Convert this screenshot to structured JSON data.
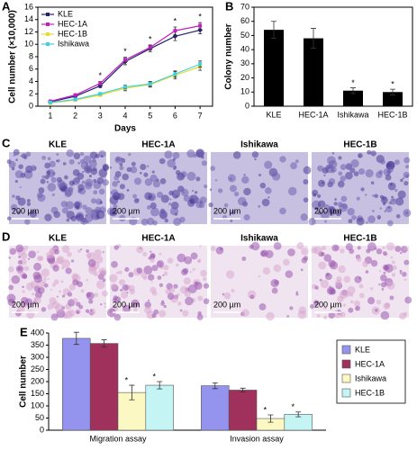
{
  "chart_data": [
    {
      "type": "line",
      "panel": "A",
      "xlabel": "Days",
      "ylabel": "Cell number (×10,000)",
      "x": [
        1,
        2,
        3,
        4,
        5,
        6,
        7
      ],
      "xlim": [
        0.5,
        7.5
      ],
      "xticks": [
        1,
        2,
        3,
        4,
        5,
        6,
        7
      ],
      "ylim": [
        0,
        16
      ],
      "yticks": [
        0,
        2,
        4,
        6,
        8,
        10,
        12,
        14,
        16
      ],
      "legend": "upper left",
      "significance_label": "*",
      "significant": [
        false,
        false,
        true,
        true,
        true,
        true,
        true
      ],
      "series": [
        {
          "name": "KLE",
          "color": "#22226e",
          "values": [
            0.7,
            1.6,
            3.3,
            7.2,
            9.3,
            11.3,
            12.3
          ],
          "errors": [
            0.1,
            0.2,
            0.3,
            0.5,
            0.5,
            0.7,
            0.6
          ]
        },
        {
          "name": "HEC-1A",
          "color": "#c020c0",
          "values": [
            0.8,
            1.8,
            3.7,
            7.5,
            9.5,
            12.2,
            13.0
          ],
          "errors": [
            0.1,
            0.2,
            0.3,
            0.4,
            0.4,
            0.6,
            0.5
          ]
        },
        {
          "name": "HEC-1B",
          "color": "#e6dc30",
          "values": [
            0.5,
            1.0,
            1.8,
            2.9,
            3.5,
            5.0,
            6.4
          ],
          "errors": [
            0.1,
            0.1,
            0.2,
            0.4,
            0.4,
            0.6,
            0.6
          ]
        },
        {
          "name": "Ishikawa",
          "color": "#40d0e0",
          "values": [
            0.6,
            1.1,
            2.0,
            3.1,
            3.6,
            5.2,
            6.8
          ],
          "errors": [
            0.1,
            0.1,
            0.2,
            0.3,
            0.4,
            0.5,
            0.5
          ]
        }
      ]
    },
    {
      "type": "bar",
      "panel": "B",
      "ylabel": "Colony number",
      "categories": [
        "KLE",
        "HEC-1A",
        "Ishikawa",
        "HEC-1B"
      ],
      "values": [
        54,
        48,
        11,
        10
      ],
      "errors": [
        6,
        7,
        2,
        2
      ],
      "color": "#000000",
      "ylim": [
        0,
        70
      ],
      "yticks": [
        0,
        10,
        20,
        30,
        40,
        50,
        60,
        70
      ],
      "significance_label": "*",
      "significant": [
        false,
        false,
        true,
        true
      ]
    },
    {
      "type": "bar",
      "panel": "E",
      "ylabel": "Cell number",
      "categories": [
        "Migration assay",
        "Invasion assay"
      ],
      "ylim": [
        0,
        400
      ],
      "yticks": [
        0,
        50,
        100,
        150,
        200,
        250,
        300,
        350,
        400
      ],
      "legend": "right",
      "significance_label": "*",
      "series": [
        {
          "name": "KLE",
          "color": "#9494ee",
          "values": [
            378,
            183
          ],
          "errors": [
            25,
            12
          ],
          "significant": [
            false,
            false
          ]
        },
        {
          "name": "HEC-1A",
          "color": "#a0305c",
          "values": [
            357,
            165
          ],
          "errors": [
            15,
            8
          ],
          "significant": [
            false,
            false
          ]
        },
        {
          "name": "Ishikawa",
          "color": "#fcf8c4",
          "values": [
            155,
            48
          ],
          "errors": [
            30,
            15
          ],
          "significant": [
            true,
            true
          ]
        },
        {
          "name": "HEC-1B",
          "color": "#c4f4f4",
          "values": [
            185,
            65
          ],
          "errors": [
            15,
            10
          ],
          "significant": [
            true,
            true
          ]
        }
      ]
    }
  ],
  "image_panels": [
    {
      "letter": "C",
      "labels": [
        "KLE",
        "HEC-1A",
        "Ishikawa",
        "HEC-1B"
      ],
      "scale": "200 µm"
    },
    {
      "letter": "D",
      "labels": [
        "KLE",
        "HEC-1A",
        "Ishikawa",
        "HEC-1B"
      ],
      "scale": "200 µm"
    }
  ]
}
